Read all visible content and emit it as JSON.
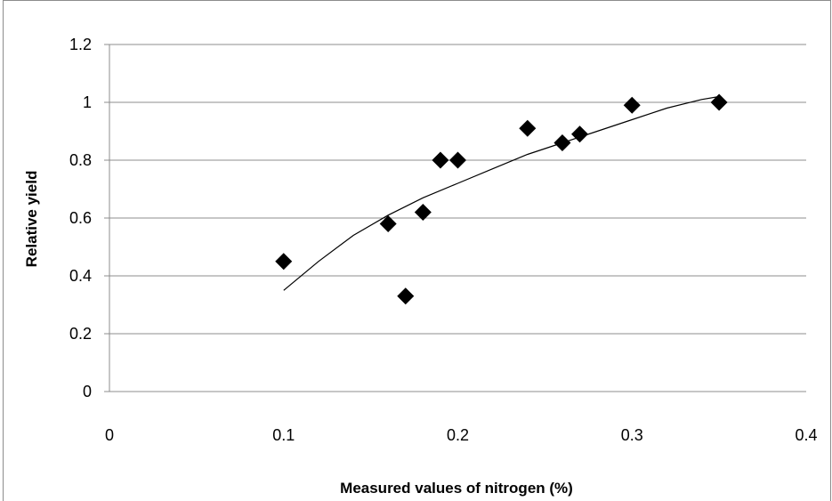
{
  "chart_data": {
    "type": "scatter",
    "title": "",
    "xlabel": "Measured values of nitrogen (%)",
    "ylabel": "Relative yield",
    "xlim": [
      0,
      0.4
    ],
    "ylim": [
      0,
      1.2
    ],
    "x_ticks": [
      0,
      0.1,
      0.2,
      0.3,
      0.4
    ],
    "x_tick_labels": [
      "0",
      "0.1",
      "0.2",
      "0.3",
      "0.4"
    ],
    "y_ticks": [
      0,
      0.2,
      0.4,
      0.6,
      0.8,
      1,
      1.2
    ],
    "y_tick_labels": [
      "0",
      "0.2",
      "0.4",
      "0.6",
      "0.8",
      "1",
      "1.2"
    ],
    "grid": "horizontal",
    "legend": "none",
    "marker": "diamond",
    "marker_color": "#000000",
    "series": [
      {
        "x": [
          0.1,
          0.16,
          0.17,
          0.18,
          0.19,
          0.2,
          0.24,
          0.26,
          0.27,
          0.3,
          0.35
        ],
        "y": [
          0.45,
          0.58,
          0.33,
          0.62,
          0.8,
          0.8,
          0.91,
          0.86,
          0.89,
          0.99,
          1.0
        ]
      }
    ],
    "trendline": {
      "type": "polynomial",
      "x": [
        0.1,
        0.12,
        0.14,
        0.16,
        0.18,
        0.2,
        0.22,
        0.24,
        0.26,
        0.28,
        0.3,
        0.32,
        0.34,
        0.35
      ],
      "y": [
        0.35,
        0.45,
        0.54,
        0.61,
        0.67,
        0.72,
        0.77,
        0.82,
        0.86,
        0.9,
        0.94,
        0.98,
        1.01,
        1.02
      ]
    }
  }
}
